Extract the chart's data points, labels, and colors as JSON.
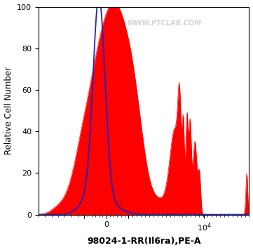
{
  "title": "",
  "xlabel": "98024-1-RR(Il6ra),PE-A",
  "ylabel": "Relative Cell Number",
  "ylim": [
    0,
    100
  ],
  "yticks": [
    0,
    20,
    40,
    60,
    80,
    100
  ],
  "background_color": "#ffffff",
  "watermark": "WWW.PTCLAB.COM",
  "blue_line_color": "#2222bb",
  "red_fill_color": "#ff0000",
  "xlabel_fontsize": 9,
  "ylabel_fontsize": 8.5,
  "tick_fontsize": 8,
  "xlabel_fontweight": "bold",
  "linthresh": 300,
  "linscale": 0.4
}
